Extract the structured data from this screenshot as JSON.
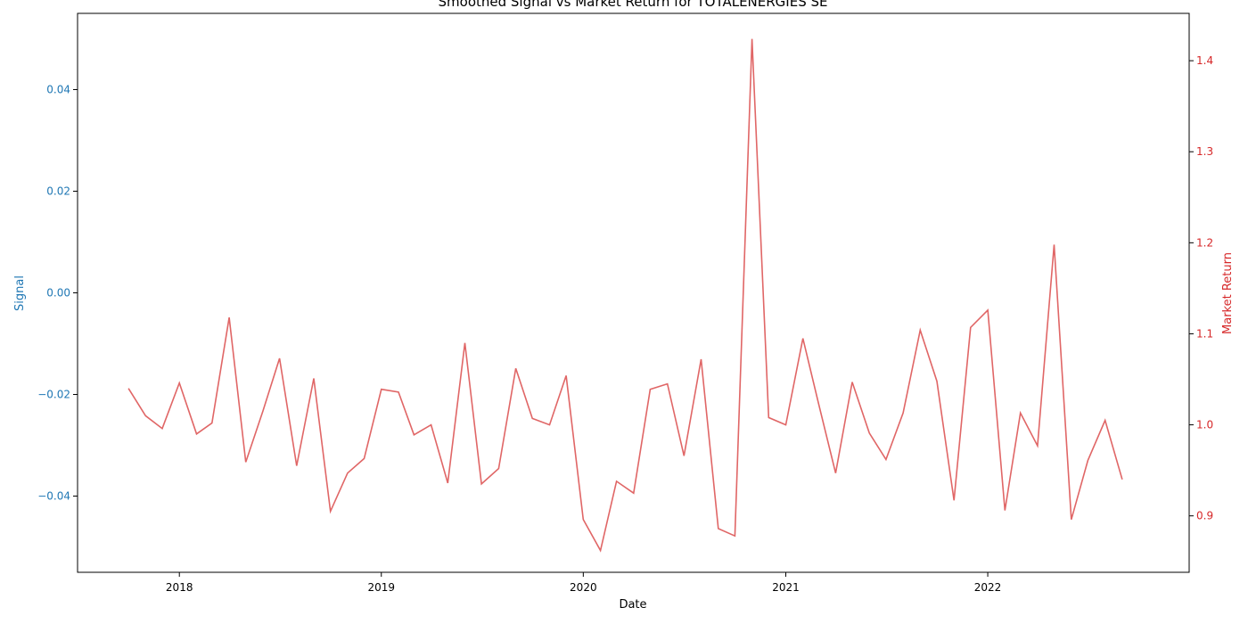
{
  "chart_data": {
    "type": "line",
    "title": "Smoothed Signal vs Market Return for TOTALENERGIES SE",
    "xlabel": "Date",
    "ylabel_left": "Signal",
    "ylabel_right": "Market Return",
    "colors": {
      "left_axis": "#1f77b4",
      "right_axis": "#d62728",
      "series": "#e06666"
    },
    "xlim": [
      "2017-07-01",
      "2022-12-31"
    ],
    "ylim_left": [
      -0.055,
      0.055
    ],
    "ylim_right": [
      0.838,
      1.452
    ],
    "x_ticks": [
      {
        "label": "2018",
        "date": "2018-01-01"
      },
      {
        "label": "2019",
        "date": "2019-01-01"
      },
      {
        "label": "2020",
        "date": "2020-01-01"
      },
      {
        "label": "2021",
        "date": "2021-01-01"
      },
      {
        "label": "2022",
        "date": "2022-01-01"
      }
    ],
    "y_ticks_left": [
      {
        "label": "−0.04",
        "value": -0.04
      },
      {
        "label": "−0.02",
        "value": -0.02
      },
      {
        "label": "0.00",
        "value": 0.0
      },
      {
        "label": "0.02",
        "value": 0.02
      },
      {
        "label": "0.04",
        "value": 0.04
      }
    ],
    "y_ticks_right": [
      {
        "label": "0.9",
        "value": 0.9
      },
      {
        "label": "1.0",
        "value": 1.0
      },
      {
        "label": "1.1",
        "value": 1.1
      },
      {
        "label": "1.2",
        "value": 1.2
      },
      {
        "label": "1.3",
        "value": 1.3
      },
      {
        "label": "1.4",
        "value": 1.4
      }
    ],
    "series": [
      {
        "axis": "right",
        "x": [
          "2017-10-01",
          "2017-11-01",
          "2017-12-01",
          "2018-01-01",
          "2018-02-01",
          "2018-03-01",
          "2018-04-01",
          "2018-05-01",
          "2018-06-01",
          "2018-07-01",
          "2018-08-01",
          "2018-09-01",
          "2018-10-01",
          "2018-11-01",
          "2018-12-01",
          "2019-01-01",
          "2019-02-01",
          "2019-03-01",
          "2019-04-01",
          "2019-05-01",
          "2019-06-01",
          "2019-07-01",
          "2019-08-01",
          "2019-09-01",
          "2019-10-01",
          "2019-11-01",
          "2019-12-01",
          "2020-01-01",
          "2020-02-01",
          "2020-03-01",
          "2020-04-01",
          "2020-05-01",
          "2020-06-01",
          "2020-07-01",
          "2020-08-01",
          "2020-09-01",
          "2020-10-01",
          "2020-11-01",
          "2020-12-01",
          "2021-01-01",
          "2021-02-01",
          "2021-03-01",
          "2021-04-01",
          "2021-05-01",
          "2021-06-01",
          "2021-07-01",
          "2021-08-01",
          "2021-09-01",
          "2021-10-01",
          "2021-11-01",
          "2021-12-01",
          "2022-01-01",
          "2022-02-01",
          "2022-03-01",
          "2022-04-01",
          "2022-05-01",
          "2022-06-01",
          "2022-07-01",
          "2022-08-01",
          "2022-09-01"
        ],
        "values": [
          1.04,
          1.01,
          0.996,
          1.046,
          0.99,
          1.002,
          1.118,
          0.959,
          1.015,
          1.073,
          0.955,
          1.051,
          0.905,
          0.947,
          0.963,
          1.039,
          1.036,
          0.989,
          1.0,
          0.936,
          1.09,
          0.935,
          0.952,
          1.062,
          1.007,
          1.0,
          1.054,
          0.896,
          0.862,
          0.938,
          0.925,
          1.039,
          1.045,
          0.966,
          1.072,
          0.886,
          0.878,
          1.424,
          1.008,
          1.0,
          1.095,
          1.024,
          0.947,
          1.047,
          0.991,
          0.962,
          1.013,
          1.104,
          1.048,
          0.917,
          1.107,
          1.126,
          0.906,
          1.013,
          0.977,
          1.198,
          0.896,
          0.961,
          1.005,
          0.94
        ]
      }
    ]
  }
}
